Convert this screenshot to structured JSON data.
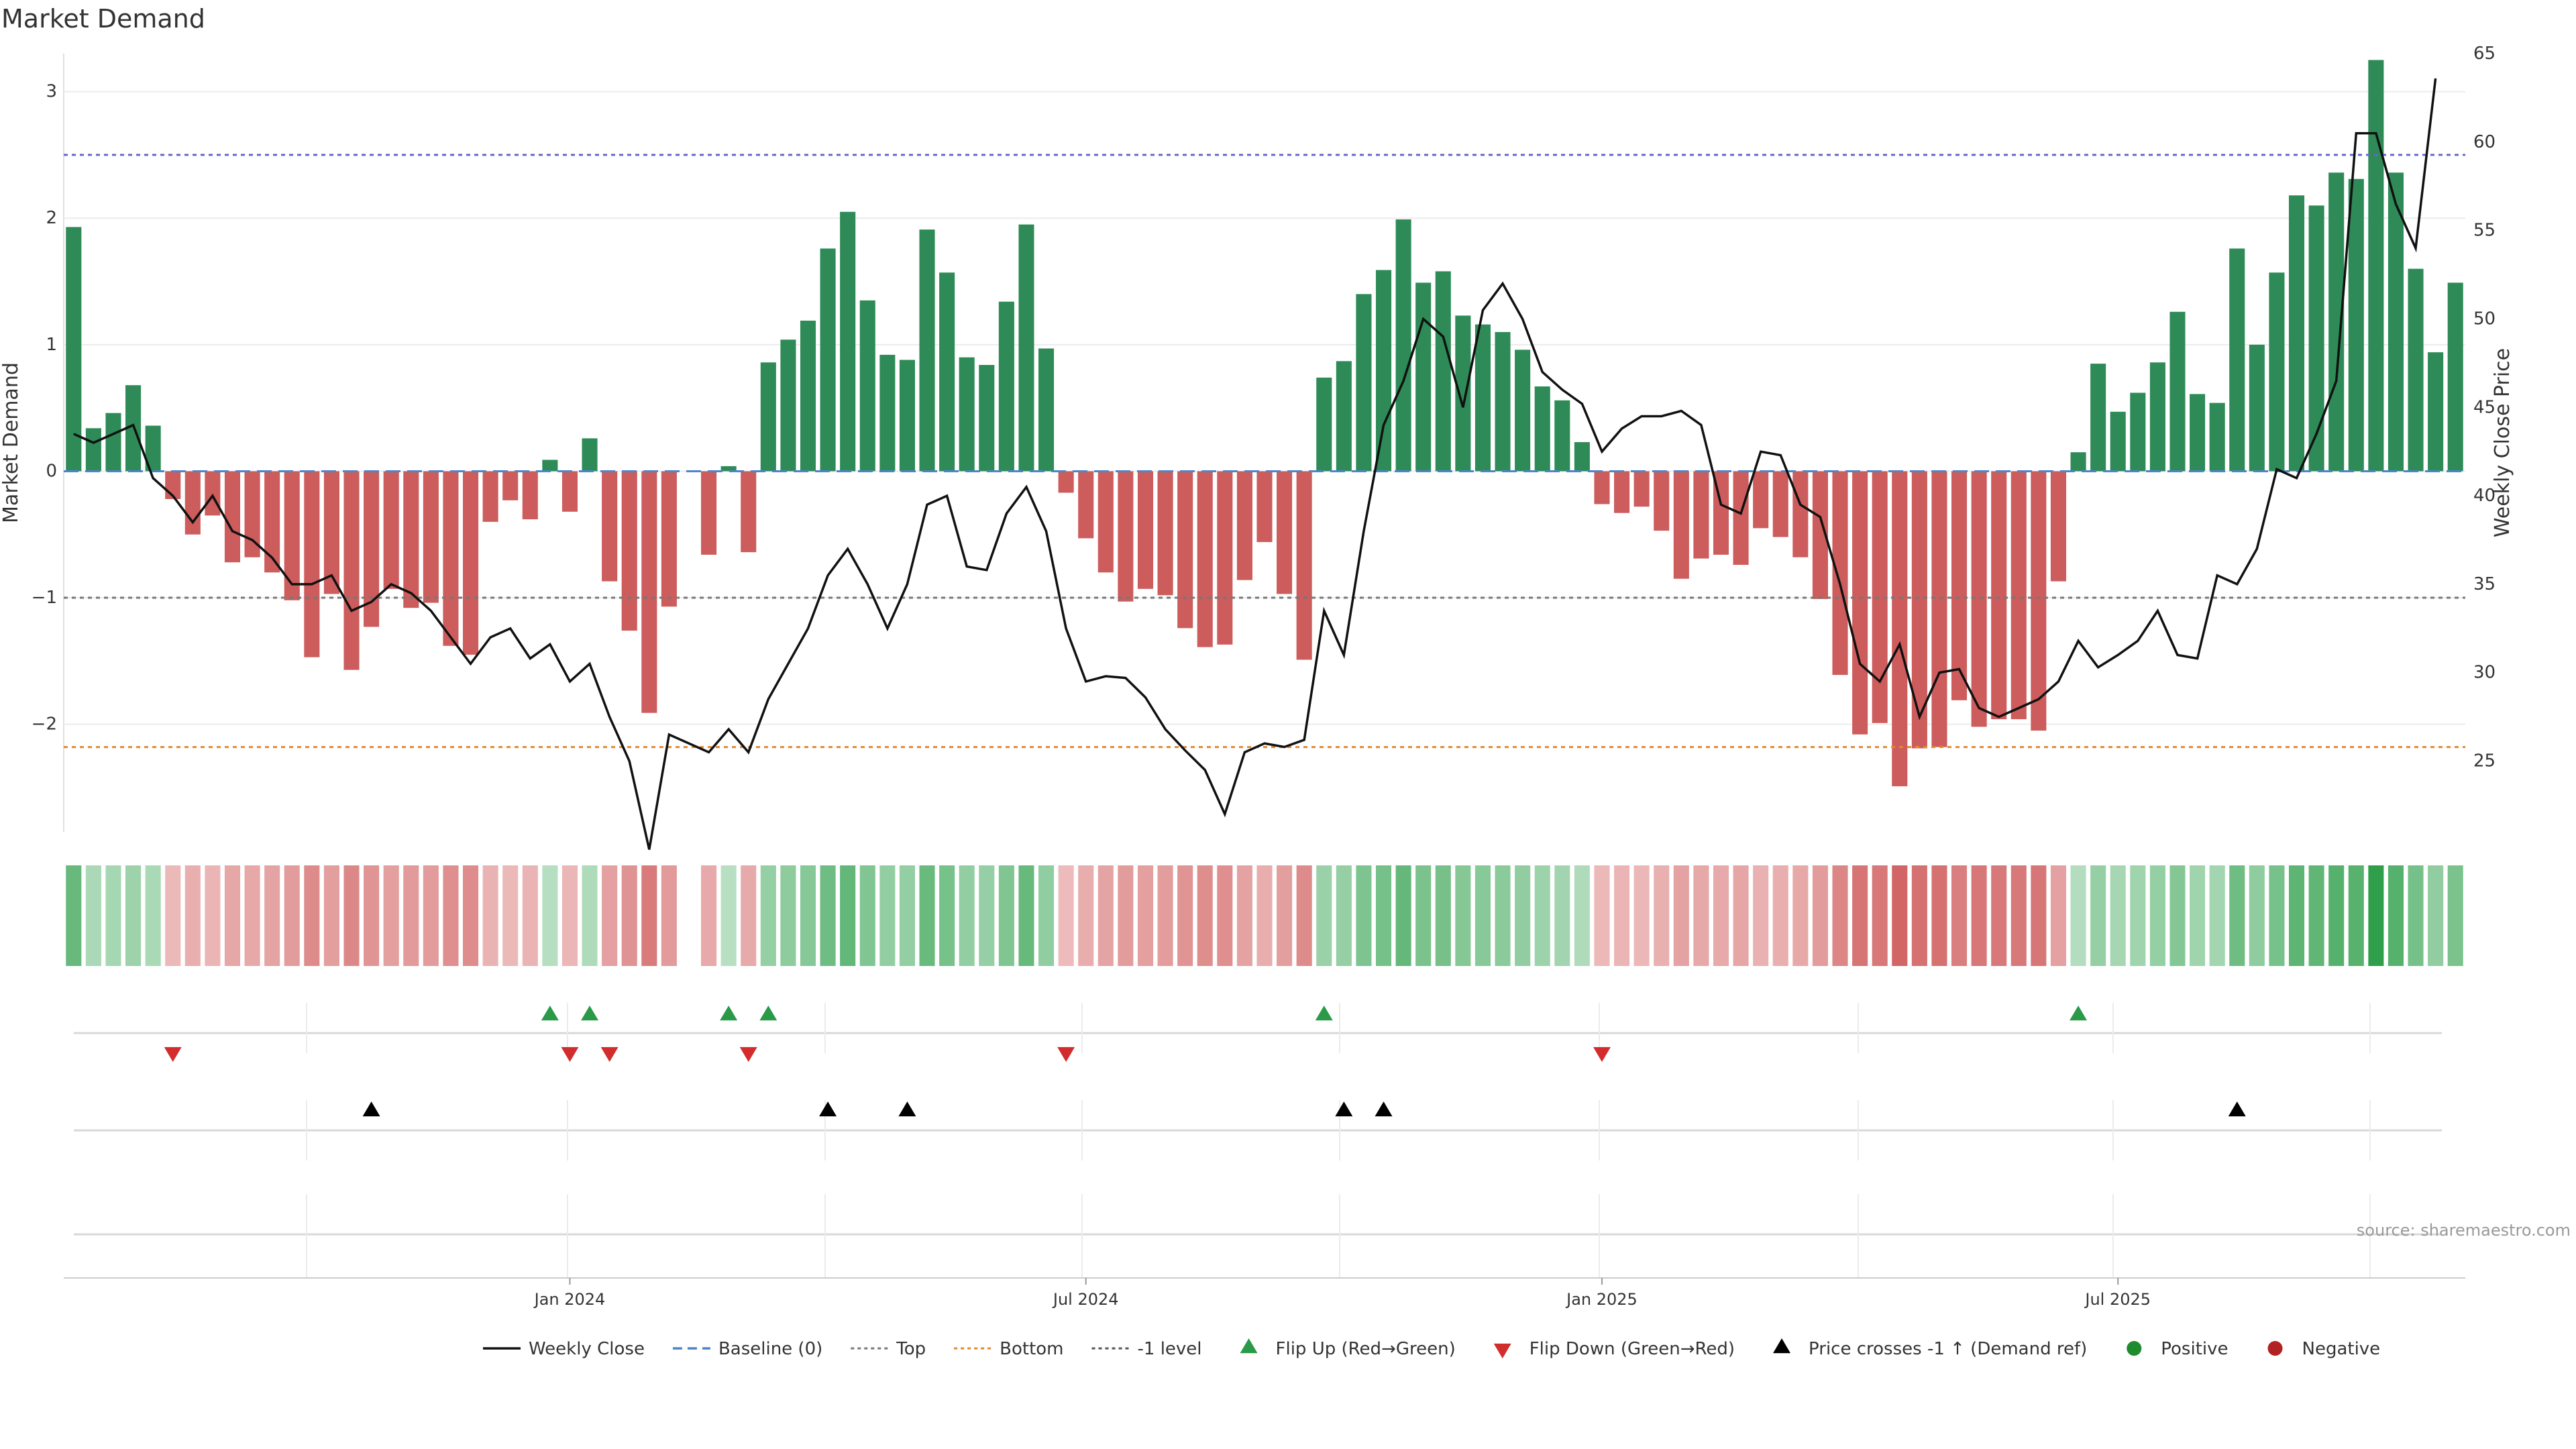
{
  "title": "Market Demand",
  "source": "source: sharemaestro.com",
  "chart_data": {
    "type": "bar",
    "ylabel": "Market Demand",
    "y2label": "Weekly Close Price",
    "ylim": [
      -2.85,
      3.3
    ],
    "y2lim": [
      21,
      65
    ],
    "yticks": [
      3,
      2,
      1,
      0,
      -1,
      -2
    ],
    "y2ticks": [
      65,
      60,
      55,
      50,
      45,
      40,
      35,
      30,
      25
    ],
    "reference_lines": [
      {
        "name": "Top",
        "value": 2.5,
        "color": "#6666cc"
      },
      {
        "name": "-1 level",
        "value": -1,
        "color": "#777777"
      },
      {
        "name": "Bottom",
        "value": -2.18,
        "color": "#e08a2c"
      },
      {
        "name": "Baseline (0)",
        "value": 0,
        "color": "#4a86c8"
      }
    ],
    "xtick_labels": [
      {
        "label": "Jan 2024",
        "index": 25.5
      },
      {
        "label": "Jul 2024",
        "index": 51.5
      },
      {
        "label": "Jan 2025",
        "index": 77.5
      },
      {
        "label": "Jul 2025",
        "index": 103.5
      }
    ],
    "values": [
      1.93,
      0.34,
      0.46,
      0.68,
      0.36,
      -0.22,
      -0.5,
      -0.35,
      -0.72,
      -0.68,
      -0.8,
      -1.02,
      -1.47,
      -0.97,
      -1.57,
      -1.23,
      -0.93,
      -1.08,
      -1.04,
      -1.38,
      -1.45,
      -0.4,
      -0.23,
      -0.38,
      0.09,
      -0.32,
      0.26,
      -0.87,
      -1.26,
      -1.91,
      -1.07,
      0,
      -0.66,
      0.04,
      -0.64,
      0.86,
      1.04,
      1.19,
      1.76,
      2.05,
      1.35,
      0.92,
      0.88,
      1.91,
      1.57,
      0.9,
      0.84,
      1.34,
      1.95,
      0.97,
      -0.17,
      -0.53,
      -0.8,
      -1.03,
      -0.93,
      -0.98,
      -1.24,
      -1.39,
      -1.37,
      -0.86,
      -0.56,
      -0.97,
      -1.49,
      0.74,
      0.87,
      1.4,
      1.59,
      1.99,
      1.49,
      1.58,
      1.23,
      1.16,
      1.1,
      0.96,
      0.67,
      0.56,
      0.23,
      -0.26,
      -0.33,
      -0.28,
      -0.47,
      -0.85,
      -0.69,
      -0.66,
      -0.74,
      -0.45,
      -0.52,
      -0.68,
      -1.01,
      -1.61,
      -2.08,
      -1.99,
      -2.49,
      -2.19,
      -2.18,
      -1.81,
      -2.02,
      -1.96,
      -1.96,
      -2.05,
      -0.87,
      0.15,
      0.85,
      0.47,
      0.62,
      0.86,
      1.26,
      0.61,
      0.54,
      1.76,
      1.0,
      1.57,
      2.18,
      2.1,
      2.36,
      2.31,
      3.25,
      2.36,
      1.6,
      0.94,
      1.49
    ],
    "price": [
      43.5,
      43,
      43.5,
      44,
      41,
      40,
      38.5,
      40,
      38,
      37.5,
      36.5,
      35,
      35,
      35.5,
      33.5,
      34,
      35,
      34.5,
      33.5,
      32,
      30.5,
      32,
      32.5,
      30.8,
      31.6,
      29.5,
      30.5,
      27.5,
      25,
      20,
      26.5,
      26,
      25.5,
      26.8,
      25.5,
      28.5,
      30.5,
      32.5,
      35.5,
      37,
      35,
      32.5,
      35,
      39.5,
      40,
      36,
      35.8,
      39,
      40.5,
      38,
      32.5,
      29.5,
      29.8,
      29.7,
      28.6,
      26.8,
      25.6,
      24.5,
      22,
      25.5,
      26,
      25.8,
      26.2,
      33.5,
      31,
      38,
      44,
      46.5,
      50,
      49,
      45,
      50.5,
      52,
      50,
      47,
      46,
      45.2,
      42.5,
      43.8,
      44.5,
      44.5,
      44.8,
      44,
      39.5,
      39,
      42.5,
      42.3,
      39.5,
      38.8,
      35,
      30.5,
      29.5,
      31.6,
      27.5,
      30,
      30.2,
      28,
      27.5,
      28,
      28.5,
      29.5,
      31.8,
      30.3,
      31,
      31.8,
      33.5,
      31,
      30.8,
      35.5,
      35,
      37,
      41.5,
      41,
      43.5,
      46.5,
      60.5,
      60.5,
      56.5,
      54,
      63.6
    ],
    "flip_up_indices": [
      24,
      26,
      33,
      35,
      63,
      101
    ],
    "flip_down_indices": [
      5,
      25,
      27,
      34,
      50,
      77
    ],
    "price_cross_indices": [
      15,
      38,
      42,
      64,
      66,
      109
    ],
    "legend": [
      {
        "label": "Weekly Close",
        "kind": "line",
        "color": "#111111"
      },
      {
        "label": "Baseline (0)",
        "kind": "dash",
        "color": "#4a86c8"
      },
      {
        "label": "Top",
        "kind": "dot",
        "color": "#777777"
      },
      {
        "label": "Bottom",
        "kind": "dot",
        "color": "#e08a2c"
      },
      {
        "label": "-1 level",
        "kind": "dot",
        "color": "#555555"
      },
      {
        "label": "Flip Up (Red→Green)",
        "kind": "tri-up",
        "color": "#2a9a48"
      },
      {
        "label": "Flip Down (Green→Red)",
        "kind": "tri-down",
        "color": "#d22c2c"
      },
      {
        "label": "Price crosses -1 ↑ (Demand ref)",
        "kind": "tri-up",
        "color": "#000000"
      },
      {
        "label": "Positive",
        "kind": "dot-circle",
        "color": "#1f8a2e"
      },
      {
        "label": "Negative",
        "kind": "dot-circle",
        "color": "#b22222"
      }
    ],
    "colors": {
      "positive": "#2e8b57",
      "negative": "#cd5c5c",
      "price": "#111111"
    }
  }
}
